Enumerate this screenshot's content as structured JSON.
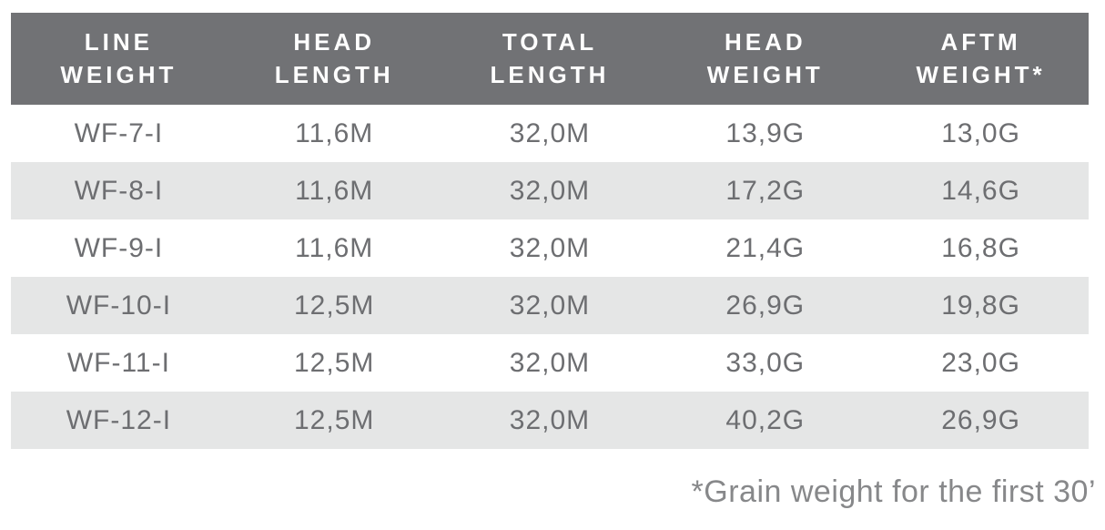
{
  "chart_data": {
    "type": "table",
    "columns": [
      "LINE\nWEIGHT",
      "HEAD\nLENGTH",
      "TOTAL\nLENGTH",
      "HEAD\nWEIGHT",
      "AFTM\nWEIGHT*"
    ],
    "rows": [
      [
        "WF-7-I",
        "11,6M",
        "32,0M",
        "13,9G",
        "13,0G"
      ],
      [
        "WF-8-I",
        "11,6M",
        "32,0M",
        "17,2G",
        "14,6G"
      ],
      [
        "WF-9-I",
        "11,6M",
        "32,0M",
        "21,4G",
        "16,8G"
      ],
      [
        "WF-10-I",
        "12,5M",
        "32,0M",
        "26,9G",
        "19,8G"
      ],
      [
        "WF-11-I",
        "12,5M",
        "32,0M",
        "33,0G",
        "23,0G"
      ],
      [
        "WF-12-I",
        "12,5M",
        "32,0M",
        "40,2G",
        "26,9G"
      ]
    ],
    "footnote": "*Grain weight for the first 30’"
  },
  "colors": {
    "header_bg": "#717275",
    "header_text": "#ffffff",
    "stripe_bg": "#e5e6e6",
    "cell_text": "#6d6e71",
    "footnote_text": "#87888a"
  }
}
